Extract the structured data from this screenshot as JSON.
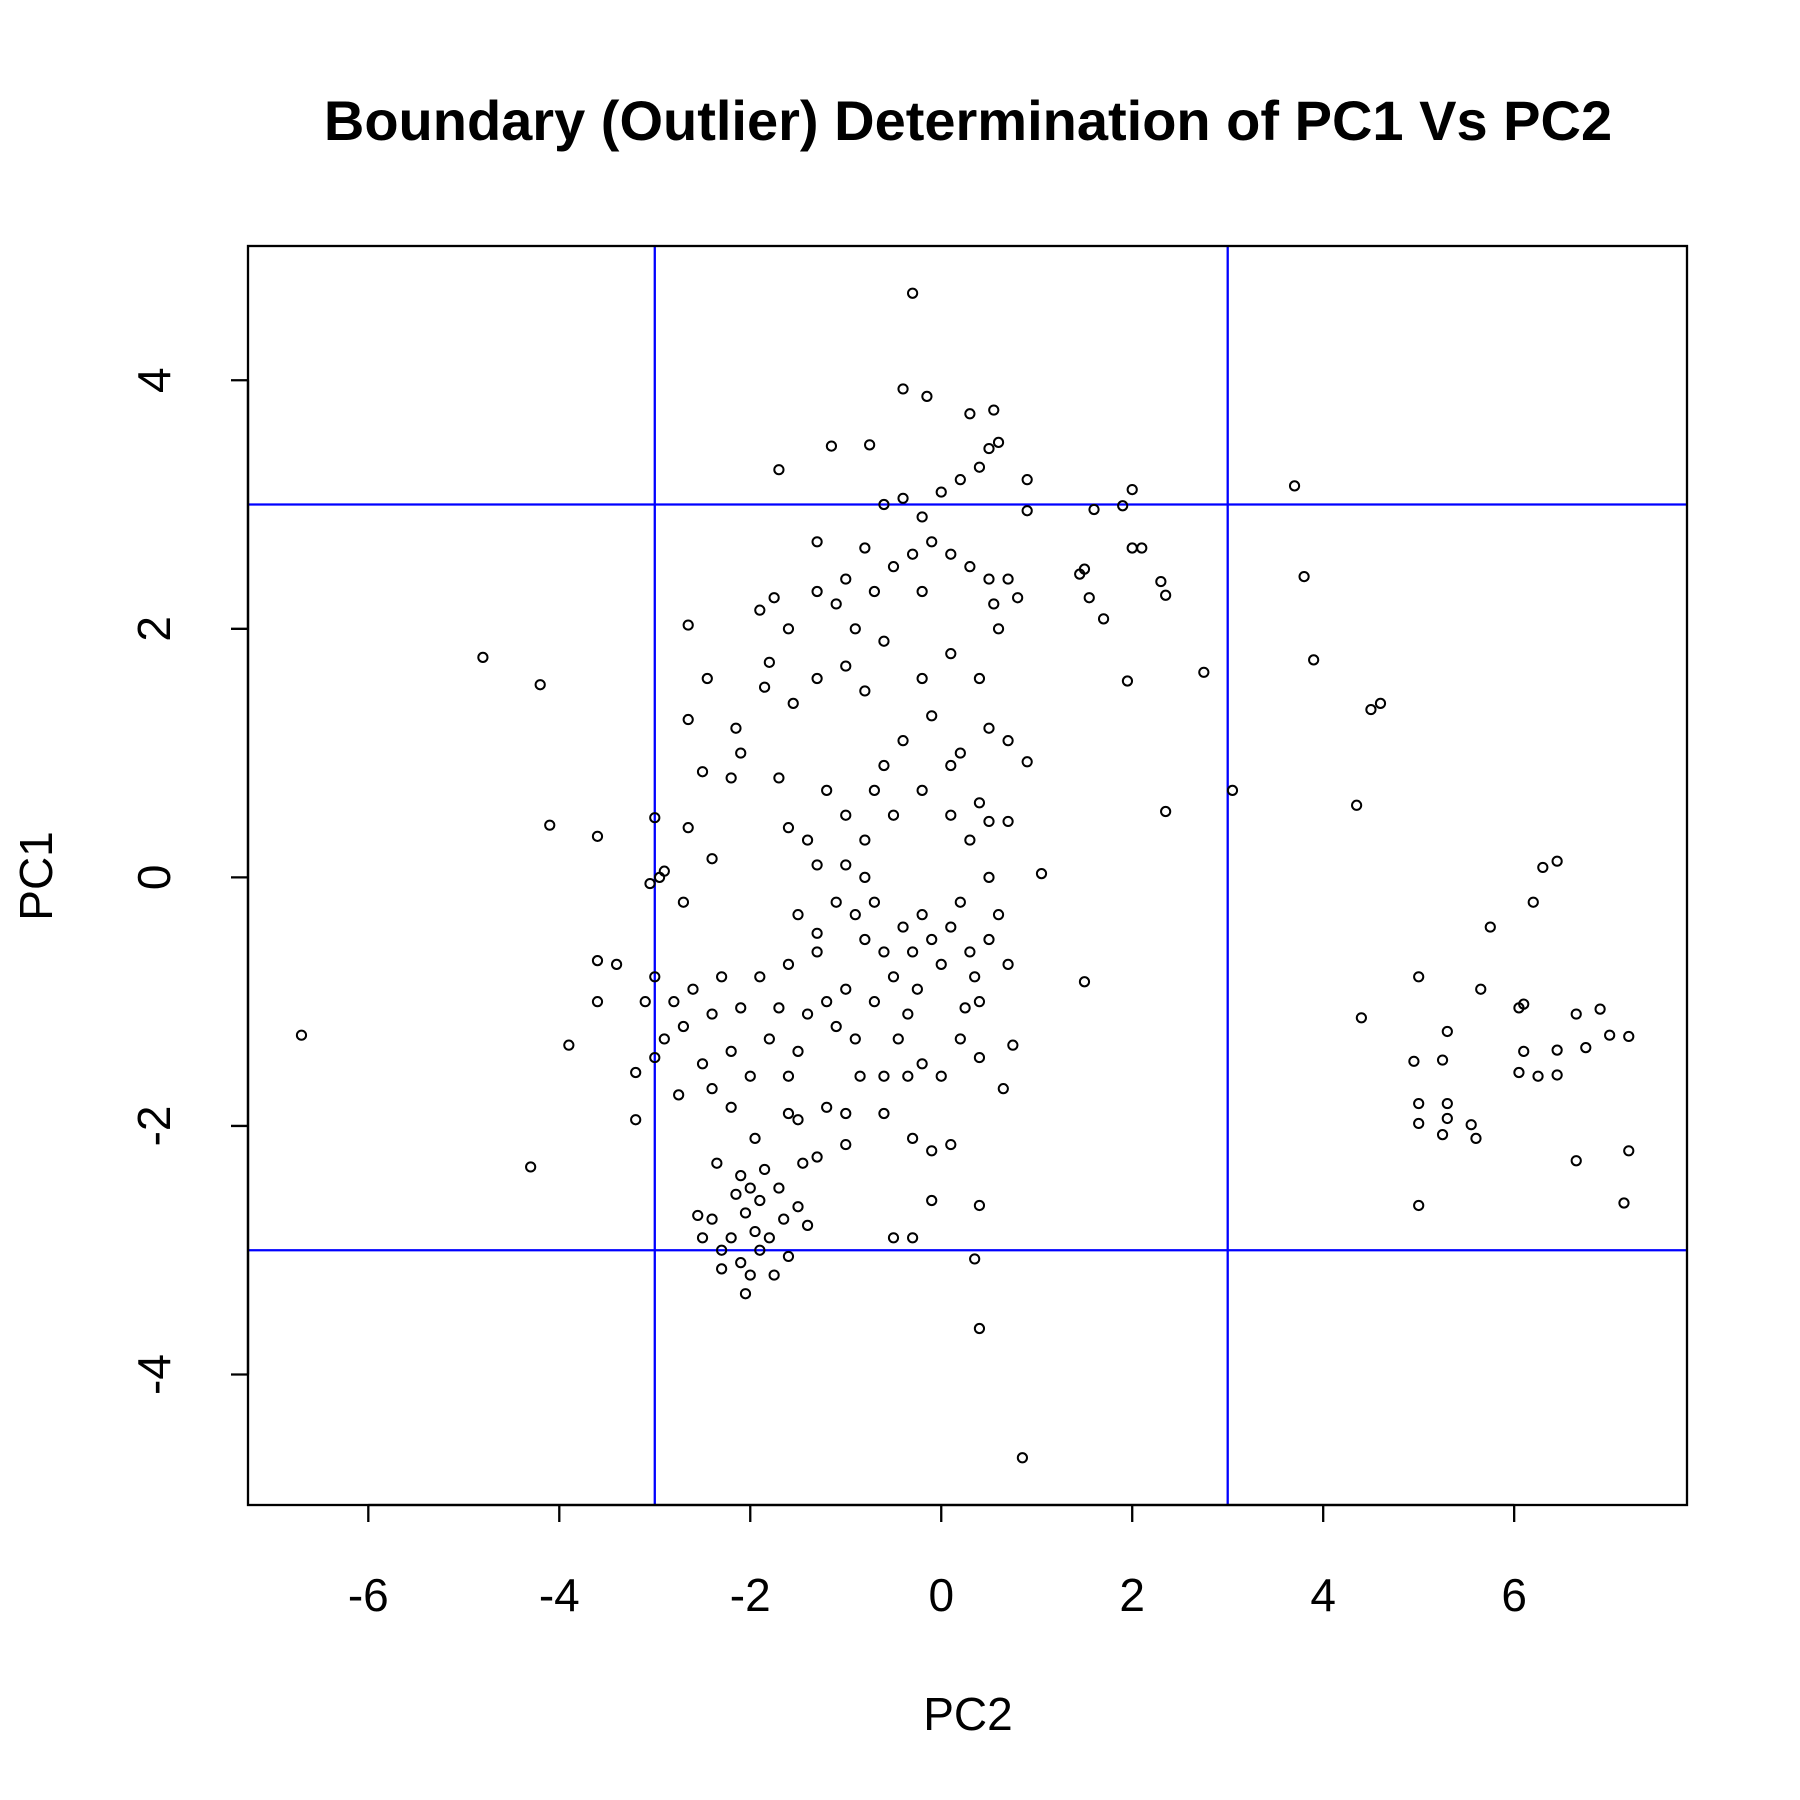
{
  "chart_data": {
    "type": "scatter",
    "title": "Boundary (Outlier) Determination of PC1 Vs PC2",
    "x_label": "PC2",
    "y_label": "PC1",
    "xlim": [
      -7.26,
      7.81
    ],
    "ylim": [
      -5.05,
      5.08
    ],
    "xticks": [
      -6,
      -4,
      -2,
      0,
      2,
      4,
      6
    ],
    "yticks": [
      -4,
      -2,
      0,
      2,
      4
    ],
    "color": "#000000",
    "reference_lines": {
      "color": "#0000ff",
      "x": [
        -3,
        3
      ],
      "y": [
        -3,
        3
      ]
    },
    "x": [
      -6.7,
      -4.8,
      -4.2,
      -4.1,
      -3.9,
      -4.3,
      -3.6,
      -3.6,
      -3.6,
      -3.4,
      -3.2,
      -3.2,
      -3.0,
      3.7,
      3.8,
      3.9,
      4.5,
      4.6,
      4.35,
      3.05,
      2.75,
      2.35,
      2.35,
      2.3,
      2.1,
      2.0,
      2.0,
      1.9,
      1.95,
      1.7,
      1.55,
      1.6,
      1.5,
      1.45,
      1.5,
      1.05,
      0.9,
      0.9,
      0.9,
      0.85,
      0.4,
      0.35,
      0.4,
      -0.3,
      -0.4,
      -0.15,
      0.3,
      0.55,
      -1.15,
      -0.75,
      -1.7,
      4.4,
      4.95,
      5.0,
      5.0,
      5.0,
      5.0,
      5.25,
      5.25,
      5.3,
      5.3,
      5.3,
      5.55,
      5.6,
      5.65,
      5.75,
      6.05,
      6.05,
      6.1,
      6.1,
      6.2,
      6.25,
      6.3,
      6.45,
      6.45,
      6.45,
      6.65,
      6.65,
      6.75,
      6.9,
      7.0,
      7.15,
      7.2,
      7.2,
      -2.1,
      -2.0,
      -1.9,
      -2.05,
      -2.2,
      -2.3,
      -2.1,
      -1.9,
      -1.8,
      -2.0,
      -2.05,
      -1.75,
      -1.6,
      -1.65,
      -1.5,
      -1.4,
      -1.45,
      -1.7,
      -2.4,
      -2.5,
      -2.55,
      -2.35,
      -2.2,
      -1.95,
      -2.3,
      -1.85,
      -2.15,
      -1.95,
      -2.8,
      -2.6,
      -2.4,
      -2.3,
      -2.7,
      -2.9,
      -3.0,
      -2.2,
      -2.5,
      -2.1,
      -1.9,
      -1.8,
      -2.0,
      -2.4,
      -2.75,
      -3.0,
      -3.1,
      -2.95,
      -2.9,
      -3.05,
      -2.7,
      -2.4,
      -2.65,
      -2.5,
      -2.2,
      -2.1,
      -2.15,
      -2.45,
      -2.65,
      -2.65,
      -1.85,
      -1.8,
      -1.6,
      -1.9,
      -1.75,
      -1.55,
      -1.7,
      -1.6,
      -1.4,
      -1.3,
      -1.5,
      -1.3,
      -1.6,
      -1.7,
      -1.4,
      -1.5,
      -1.6,
      -1.6,
      -1.5,
      -1.3,
      -1.2,
      -1.0,
      -1.0,
      -0.6,
      -0.3,
      -0.1,
      0.1,
      -0.1,
      -0.5,
      -0.3,
      -1.2,
      -1.1,
      -1.0,
      -0.9,
      -0.8,
      -0.8,
      -0.7,
      -0.9,
      -0.6,
      -0.5,
      -0.4,
      -0.3,
      -0.2,
      -0.1,
      0.0,
      0.1,
      0.2,
      0.3,
      -0.25,
      -0.35,
      -0.45,
      -0.2,
      0.0,
      0.2,
      0.4,
      0.5,
      0.6,
      0.7,
      0.75,
      0.65,
      0.5,
      0.3,
      0.1,
      -0.2,
      -0.5,
      -0.8,
      -1.0,
      -1.2,
      -0.6,
      -0.4,
      -0.1,
      0.2,
      0.5,
      0.7,
      -0.8,
      -1.0,
      -1.3,
      -0.2,
      0.1,
      0.4,
      -0.6,
      -0.9,
      -1.1,
      -1.3,
      -1.0,
      -0.7,
      -0.5,
      -0.3,
      -0.1,
      0.1,
      0.3,
      0.5,
      -0.2,
      0.0,
      0.2,
      -0.4,
      0.4,
      0.5,
      0.6,
      0.6,
      0.55,
      0.7,
      0.8,
      -0.2,
      -1.3,
      -0.8,
      -0.6,
      0.4,
      0.5,
      0.7,
      0.1,
      -0.7,
      -1.0,
      -1.1,
      -1.3,
      -0.7,
      -0.85,
      -0.6,
      -0.35,
      0.25,
      0.4,
      0.35
    ],
    "values": [
      -1.27,
      1.77,
      1.55,
      0.42,
      -1.35,
      -2.33,
      0.33,
      -0.67,
      -1.0,
      -0.7,
      -1.95,
      -1.57,
      0.48,
      3.15,
      2.42,
      1.75,
      1.35,
      1.4,
      0.58,
      0.7,
      1.65,
      0.53,
      2.27,
      2.38,
      2.65,
      2.65,
      3.12,
      2.99,
      1.58,
      2.08,
      2.25,
      2.96,
      2.48,
      2.44,
      -0.84,
      0.03,
      3.2,
      2.95,
      0.93,
      -4.67,
      -3.63,
      -3.07,
      -2.64,
      4.7,
      3.93,
      3.87,
      3.73,
      3.76,
      3.47,
      3.48,
      3.28,
      -1.13,
      -1.48,
      -0.8,
      -1.82,
      -1.98,
      -2.64,
      -1.47,
      -2.07,
      -1.24,
      -1.82,
      -1.94,
      -1.99,
      -2.1,
      -0.9,
      -0.4,
      -1.05,
      -1.57,
      -1.4,
      -1.02,
      -0.2,
      -1.6,
      0.08,
      0.13,
      -1.39,
      -1.59,
      -1.1,
      -2.28,
      -1.37,
      -1.06,
      -1.27,
      -2.62,
      -2.2,
      -1.28,
      -2.4,
      -2.5,
      -2.6,
      -2.7,
      -2.9,
      -3.0,
      -3.1,
      -3.0,
      -2.9,
      -3.2,
      -3.35,
      -3.2,
      -3.05,
      -2.75,
      -2.65,
      -2.8,
      -2.3,
      -2.5,
      -2.75,
      -2.9,
      -2.72,
      -2.3,
      -1.85,
      -2.1,
      -3.15,
      -2.35,
      -2.55,
      -2.85,
      -1.0,
      -0.9,
      -1.1,
      -0.8,
      -1.2,
      -1.3,
      -1.45,
      -1.4,
      -1.5,
      -1.05,
      -0.8,
      -1.3,
      -1.6,
      -1.7,
      -1.75,
      -0.8,
      -1.0,
      0.0,
      0.05,
      -0.05,
      -0.2,
      0.15,
      0.4,
      0.85,
      0.8,
      1.0,
      1.2,
      1.6,
      1.27,
      2.03,
      1.53,
      1.73,
      2.0,
      2.15,
      2.25,
      1.4,
      0.8,
      0.4,
      0.3,
      0.1,
      -0.3,
      -0.6,
      -0.7,
      -1.05,
      -1.1,
      -1.4,
      -1.6,
      -1.9,
      -1.95,
      -2.25,
      -1.85,
      -1.9,
      -2.15,
      -1.9,
      -2.1,
      -2.2,
      -2.15,
      -2.6,
      -2.9,
      -2.9,
      -1.0,
      -1.2,
      -0.9,
      -1.3,
      -0.5,
      0.0,
      -0.2,
      -0.3,
      -0.6,
      -0.8,
      -0.4,
      -0.6,
      -0.3,
      -0.5,
      -0.7,
      -0.4,
      -0.2,
      -0.6,
      -0.9,
      -1.1,
      -1.3,
      -1.5,
      -1.6,
      -1.3,
      -1.0,
      -0.5,
      -0.3,
      -0.7,
      -1.35,
      -1.7,
      0.0,
      0.3,
      0.5,
      0.7,
      0.5,
      0.3,
      0.5,
      0.7,
      0.9,
      1.1,
      1.3,
      1.0,
      1.2,
      1.1,
      1.5,
      1.7,
      1.6,
      1.6,
      1.8,
      1.6,
      1.9,
      2.0,
      2.2,
      2.3,
      2.4,
      2.3,
      2.5,
      2.6,
      2.7,
      2.6,
      2.5,
      2.4,
      2.9,
      3.1,
      3.2,
      3.05,
      3.3,
      3.45,
      3.5,
      2.0,
      2.2,
      2.4,
      2.25,
      2.3,
      2.7,
      2.65,
      3.0,
      0.6,
      0.45,
      0.45,
      0.9,
      0.7,
      0.1,
      -0.2,
      -0.45,
      -1.0,
      -1.6,
      -1.6,
      -1.6,
      -1.05,
      -1.45,
      -0.8
    ]
  }
}
